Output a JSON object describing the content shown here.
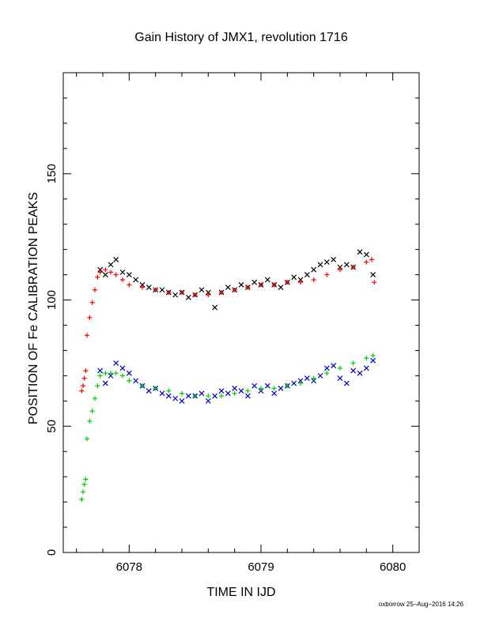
{
  "chart_data": {
    "type": "scatter",
    "title": "Gain History of JMX1, revolution 1716",
    "xlabel": "TIME IN IJD",
    "ylabel": "POSITION OF Fe CALIBRATION PEAKS",
    "xlim": [
      6077.5,
      6080.2
    ],
    "ylim": [
      0,
      190
    ],
    "xticks": [
      6078,
      6079,
      6080
    ],
    "xtick_labels": [
      "6078",
      "6079",
      "6080"
    ],
    "yticks": [
      0,
      50,
      100,
      150
    ],
    "ytick_labels": [
      "0",
      "50",
      "100",
      "150"
    ],
    "grid": false,
    "legend": "none",
    "series": [
      {
        "marker": "x",
        "color": "#000000",
        "x": [
          6077.78,
          6077.82,
          6077.86,
          6077.9,
          6077.95,
          6078.0,
          6078.05,
          6078.1,
          6078.15,
          6078.2,
          6078.25,
          6078.3,
          6078.35,
          6078.4,
          6078.45,
          6078.5,
          6078.55,
          6078.6,
          6078.65,
          6078.7,
          6078.75,
          6078.8,
          6078.85,
          6078.9,
          6078.95,
          6079.0,
          6079.05,
          6079.1,
          6079.15,
          6079.2,
          6079.25,
          6079.3,
          6079.35,
          6079.4,
          6079.45,
          6079.5,
          6079.55,
          6079.6,
          6079.65,
          6079.7,
          6079.75,
          6079.8,
          6079.85
        ],
        "y": [
          112,
          110,
          114,
          116,
          111,
          110,
          108,
          106,
          105,
          104,
          104,
          103,
          102,
          103,
          101,
          102,
          104,
          103,
          97,
          103,
          105,
          104,
          106,
          105,
          107,
          106,
          108,
          106,
          105,
          107,
          109,
          108,
          110,
          112,
          114,
          115,
          116,
          113,
          114,
          113,
          119,
          118,
          110
        ]
      },
      {
        "marker": "+",
        "color": "#ff0000",
        "x": [
          6077.64,
          6077.65,
          6077.66,
          6077.67,
          6077.68,
          6077.7,
          6077.72,
          6077.74,
          6077.76,
          6077.78,
          6077.82,
          6077.86,
          6077.9,
          6077.95,
          6078.0,
          6078.1,
          6078.2,
          6078.3,
          6078.4,
          6078.5,
          6078.6,
          6078.7,
          6078.8,
          6078.9,
          6079.0,
          6079.1,
          6079.2,
          6079.3,
          6079.4,
          6079.5,
          6079.6,
          6079.7,
          6079.8,
          6079.84,
          6079.86
        ],
        "y": [
          64,
          66,
          69,
          72,
          86,
          93,
          99,
          104,
          109,
          111,
          112,
          111,
          110,
          108,
          106,
          105,
          104,
          103,
          103,
          102,
          102,
          103,
          104,
          105,
          106,
          106,
          107,
          107,
          108,
          110,
          112,
          113,
          115,
          116,
          107
        ]
      },
      {
        "marker": "x",
        "color": "#0000cc",
        "x": [
          6077.78,
          6077.82,
          6077.86,
          6077.9,
          6077.95,
          6078.0,
          6078.05,
          6078.1,
          6078.15,
          6078.2,
          6078.25,
          6078.3,
          6078.35,
          6078.4,
          6078.45,
          6078.5,
          6078.55,
          6078.6,
          6078.65,
          6078.7,
          6078.75,
          6078.8,
          6078.85,
          6078.9,
          6078.95,
          6079.0,
          6079.05,
          6079.1,
          6079.15,
          6079.2,
          6079.25,
          6079.3,
          6079.35,
          6079.4,
          6079.45,
          6079.5,
          6079.55,
          6079.6,
          6079.65,
          6079.7,
          6079.75,
          6079.8,
          6079.85
        ],
        "y": [
          72,
          67,
          70,
          75,
          73,
          71,
          68,
          66,
          64,
          65,
          63,
          62,
          61,
          60,
          62,
          62,
          63,
          60,
          62,
          64,
          63,
          65,
          64,
          62,
          66,
          64,
          66,
          63,
          65,
          66,
          67,
          68,
          69,
          68,
          70,
          73,
          74,
          69,
          67,
          72,
          71,
          73,
          76
        ]
      },
      {
        "marker": "+",
        "color": "#00cc00",
        "x": [
          6077.64,
          6077.65,
          6077.66,
          6077.67,
          6077.68,
          6077.7,
          6077.72,
          6077.74,
          6077.76,
          6077.78,
          6077.82,
          6077.86,
          6077.9,
          6077.95,
          6078.0,
          6078.1,
          6078.2,
          6078.3,
          6078.4,
          6078.5,
          6078.6,
          6078.7,
          6078.8,
          6078.9,
          6079.0,
          6079.1,
          6079.2,
          6079.3,
          6079.4,
          6079.5,
          6079.6,
          6079.7,
          6079.8,
          6079.85
        ],
        "y": [
          21,
          24,
          27,
          29,
          45,
          52,
          56,
          61,
          66,
          70,
          71,
          71,
          71,
          70,
          68,
          66,
          65,
          64,
          63,
          62,
          62,
          62,
          63,
          64,
          65,
          65,
          66,
          67,
          69,
          71,
          73,
          75,
          77,
          78
        ]
      }
    ]
  },
  "footer": {
    "credit": "oxborrow 25–Aug–2016 14:26"
  }
}
